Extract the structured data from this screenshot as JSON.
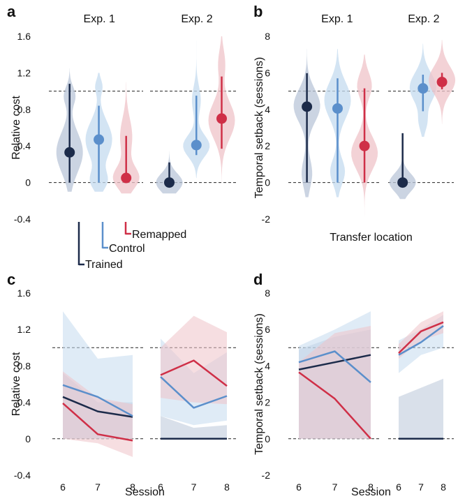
{
  "colors": {
    "trained": "#1c2b4a",
    "control": "#5b8fcb",
    "remapped": "#cf2f47",
    "trained_fill": "#b9c6d8",
    "control_fill": "#c4dbef",
    "remapped_fill": "#efc3c8"
  },
  "legend": {
    "trained": "Trained",
    "control": "Control",
    "remapped": "Remapped"
  },
  "chart_data": [
    {
      "panel": "a",
      "type": "violin",
      "ylabel": "Relative cost",
      "xlabel": "",
      "ylim": [
        -0.4,
        1.6
      ],
      "yticks": [
        "-0.4",
        "0",
        "0.4",
        "0.8",
        "1.2",
        "1.6"
      ],
      "ytick_values": [
        -0.4,
        0,
        0.4,
        0.8,
        1.2,
        1.6
      ],
      "reference_lines": [
        0,
        1
      ],
      "groups": [
        {
          "title": "Exp. 1",
          "series": [
            {
              "name": "Trained",
              "key": "trained",
              "median": 0.33,
              "ci": [
                0,
                1.08
              ],
              "violin": {
                "range": [
                  -0.1,
                  1.25
                ],
                "modes": [
                  [
                    0.33,
                    0.22,
                    0.28
                  ],
                  [
                    0.95,
                    0.1,
                    0.12
                  ]
                ]
              }
            },
            {
              "name": "Control",
              "key": "control",
              "median": 0.47,
              "ci": [
                0,
                0.84
              ],
              "violin": {
                "range": [
                  -0.1,
                  1.2
                ],
                "modes": [
                  [
                    0.47,
                    0.2,
                    0.3
                  ],
                  [
                    0.02,
                    0.1,
                    0.18
                  ],
                  [
                    1.05,
                    0.08,
                    0.08
                  ]
                ]
              }
            },
            {
              "name": "Remapped",
              "key": "remapped",
              "median": 0.05,
              "ci": [
                0,
                0.51
              ],
              "violin": {
                "range": [
                  -0.12,
                  1.1
                ],
                "modes": [
                  [
                    0.05,
                    0.12,
                    0.42
                  ],
                  [
                    0.5,
                    0.2,
                    0.2
                  ]
                ]
              }
            }
          ]
        },
        {
          "title": "Exp. 2",
          "series": [
            {
              "name": "Trained",
              "key": "trained",
              "median": 0.0,
              "ci": [
                0,
                0.22
              ],
              "violin": {
                "range": [
                  -0.12,
                  0.45
                ],
                "modes": [
                  [
                    0.0,
                    0.1,
                    0.35
                  ]
                ]
              }
            },
            {
              "name": "Control",
              "key": "control",
              "median": 0.41,
              "ci": [
                0.3,
                0.95
              ],
              "violin": {
                "range": [
                  0.05,
                  1.55
                ],
                "modes": [
                  [
                    0.4,
                    0.12,
                    0.3
                  ],
                  [
                    0.9,
                    0.15,
                    0.1
                  ]
                ]
              }
            },
            {
              "name": "Remapped",
              "key": "remapped",
              "median": 0.7,
              "ci": [
                0.37,
                1.16
              ],
              "violin": {
                "range": [
                  0.0,
                  1.6
                ],
                "modes": [
                  [
                    0.68,
                    0.2,
                    0.3
                  ],
                  [
                    1.3,
                    0.15,
                    0.08
                  ]
                ]
              }
            }
          ]
        }
      ]
    },
    {
      "panel": "b",
      "type": "violin",
      "ylabel": "Temporal setback (sessions)",
      "xlabel": "Transfer location",
      "ylim": [
        -2,
        8
      ],
      "yticks": [
        "-2",
        "0",
        "2",
        "4",
        "6",
        "8"
      ],
      "ytick_values": [
        -2,
        0,
        2,
        4,
        6,
        8
      ],
      "reference_lines": [
        0,
        5
      ],
      "groups": [
        {
          "title": "Exp. 1",
          "series": [
            {
              "name": "Trained",
              "key": "trained",
              "median": 4.15,
              "ci": [
                0,
                5.98
              ],
              "violin": {
                "range": [
                  -0.8,
                  7.3
                ],
                "modes": [
                  [
                    4.2,
                    0.9,
                    0.2
                  ],
                  [
                    0.5,
                    0.8,
                    0.08
                  ]
                ]
              }
            },
            {
              "name": "Control",
              "key": "control",
              "median": 4.05,
              "ci": [
                0,
                5.7
              ],
              "violin": {
                "range": [
                  -0.8,
                  7.3
                ],
                "modes": [
                  [
                    4.5,
                    1.0,
                    0.18
                  ],
                  [
                    0.6,
                    0.7,
                    0.1
                  ]
                ]
              }
            },
            {
              "name": "Remapped",
              "key": "remapped",
              "median": 2.0,
              "ci": [
                0,
                5.15
              ],
              "violin": {
                "range": [
                  -1.9,
                  7.0
                ],
                "modes": [
                  [
                    1.6,
                    0.9,
                    0.18
                  ],
                  [
                    5.3,
                    0.7,
                    0.1
                  ]
                ]
              }
            }
          ]
        },
        {
          "title": "Exp. 2",
          "series": [
            {
              "name": "Trained",
              "key": "trained",
              "median": 0.0,
              "ci": [
                0,
                2.7
              ],
              "violin": {
                "range": [
                  -0.9,
                  4.3
                ],
                "modes": [
                  [
                    0.0,
                    0.5,
                    0.38
                  ]
                ]
              }
            },
            {
              "name": "Control",
              "key": "control",
              "median": 5.15,
              "ci": [
                3.9,
                5.9
              ],
              "violin": {
                "range": [
                  2.5,
                  7.6
                ],
                "modes": [
                  [
                    5.2,
                    0.8,
                    0.28
                  ],
                  [
                    3.3,
                    0.5,
                    0.08
                  ]
                ]
              }
            },
            {
              "name": "Remapped",
              "key": "remapped",
              "median": 5.5,
              "ci": [
                5.1,
                6.0
              ],
              "violin": {
                "range": [
                  3.2,
                  7.8
                ],
                "modes": [
                  [
                    5.6,
                    0.75,
                    0.27
                  ]
                ]
              }
            }
          ]
        }
      ]
    },
    {
      "panel": "c",
      "type": "line",
      "ylabel": "Relative cost",
      "xlabel": "Session",
      "ylim": [
        -0.4,
        1.6
      ],
      "yticks": [
        "-0.4",
        "0",
        "0.4",
        "0.8",
        "1.2",
        "1.6"
      ],
      "ytick_values": [
        -0.4,
        0,
        0.4,
        0.8,
        1.2,
        1.6
      ],
      "reference_lines": [
        0,
        1
      ],
      "groups": [
        {
          "x": [
            6,
            7,
            8
          ],
          "xticks": [
            "6",
            "7",
            "8"
          ],
          "series": [
            {
              "name": "Trained",
              "key": "trained",
              "y": [
                0.46,
                0.3,
                0.24
              ],
              "band_low": [
                0,
                0,
                0
              ],
              "band_high": [
                0.72,
                0.4,
                0.4
              ]
            },
            {
              "name": "Control",
              "key": "control",
              "y": [
                0.59,
                0.46,
                0.25
              ],
              "band_low": [
                0,
                0,
                0
              ],
              "band_high": [
                1.4,
                0.88,
                0.92
              ]
            },
            {
              "name": "Remapped",
              "key": "remapped",
              "y": [
                0.39,
                0.05,
                -0.02
              ],
              "band_low": [
                0,
                -0.05,
                -0.2
              ],
              "band_high": [
                0.74,
                0.45,
                0.38
              ]
            }
          ]
        },
        {
          "x": [
            6,
            7,
            8
          ],
          "xticks": [
            "6",
            "7",
            "8"
          ],
          "series": [
            {
              "name": "Trained",
              "key": "trained",
              "y": [
                0,
                0,
                0
              ],
              "band_low": [
                0,
                0,
                0
              ],
              "band_high": [
                0.25,
                0.12,
                0.15
              ]
            },
            {
              "name": "Control",
              "key": "control",
              "y": [
                0.68,
                0.34,
                0.47
              ],
              "band_low": [
                0.25,
                0.15,
                0.2
              ],
              "band_high": [
                1.1,
                0.72,
                0.95
              ]
            },
            {
              "name": "Remapped",
              "key": "remapped",
              "y": [
                0.7,
                0.86,
                0.58
              ],
              "band_low": [
                0.45,
                0.4,
                0.38
              ],
              "band_high": [
                1.0,
                1.35,
                1.17
              ]
            }
          ]
        }
      ]
    },
    {
      "panel": "d",
      "type": "line",
      "ylabel": "Temporal setback (sessions)",
      "xlabel": "Session",
      "ylim": [
        -2,
        8
      ],
      "yticks": [
        "-2",
        "0",
        "2",
        "4",
        "6",
        "8"
      ],
      "ytick_values": [
        -2,
        0,
        2,
        4,
        6,
        8
      ],
      "reference_lines": [
        0,
        5
      ],
      "groups": [
        {
          "x": [
            6,
            7,
            8
          ],
          "xticks": [
            "6",
            "7",
            "8"
          ],
          "series": [
            {
              "name": "Trained",
              "key": "trained",
              "y": [
                3.8,
                4.2,
                4.6
              ],
              "band_low": [
                0,
                0,
                0
              ],
              "band_high": [
                4.9,
                5.6,
                6.0
              ]
            },
            {
              "name": "Control",
              "key": "control",
              "y": [
                4.2,
                4.8,
                3.1
              ],
              "band_low": [
                0,
                0,
                0
              ],
              "band_high": [
                5.1,
                6.0,
                7.0
              ]
            },
            {
              "name": "Remapped",
              "key": "remapped",
              "y": [
                3.65,
                2.2,
                0.0
              ],
              "band_low": [
                0,
                0,
                0
              ],
              "band_high": [
                4.2,
                5.8,
                6.2
              ]
            }
          ]
        },
        {
          "x": [
            6,
            7,
            8
          ],
          "xticks": [
            "6",
            "7",
            "8"
          ],
          "series": [
            {
              "name": "Trained",
              "key": "trained",
              "y": [
                0,
                0,
                0
              ],
              "band_low": [
                0,
                0,
                0
              ],
              "band_high": [
                2.3,
                2.8,
                3.3
              ]
            },
            {
              "name": "Control",
              "key": "control",
              "y": [
                4.6,
                5.3,
                6.2
              ],
              "band_low": [
                3.6,
                4.6,
                5.0
              ],
              "band_high": [
                5.4,
                6.0,
                6.8
              ]
            },
            {
              "name": "Remapped",
              "key": "remapped",
              "y": [
                4.7,
                5.9,
                6.4
              ],
              "band_low": [
                4.4,
                5.4,
                5.8
              ],
              "band_high": [
                5.2,
                6.4,
                7.0
              ]
            }
          ]
        }
      ]
    }
  ]
}
